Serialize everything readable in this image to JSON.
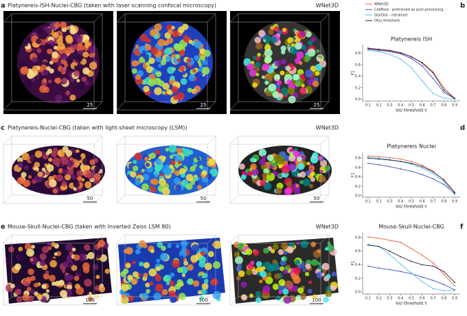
{
  "panels": [
    {
      "letter": "a",
      "title": "Platynereis-ISH-Nuclei-CBG (taken with laser scanning confocal microscopy)",
      "model": "WNet3D",
      "scales": [
        "25",
        "25",
        "25"
      ]
    },
    {
      "letter": "c",
      "title": "Platynereis-Nuclei-CBG (taken with light-sheet microscopy (LSM))",
      "model": "WNet3D",
      "scales": [
        "50",
        "50",
        "50"
      ]
    },
    {
      "letter": "e",
      "title": "Mouse-Skull-Nuclei-CBG (taken with Inverted Zeiss LSM 80)",
      "model": "WNet3D",
      "scales": [
        "100",
        "100",
        "100"
      ]
    }
  ],
  "chart_data": [
    {
      "type": "line",
      "label": "b",
      "title": "Platynereis ISH",
      "x_label": "IoU threshold τ",
      "y_label": "F1",
      "x": [
        0.1,
        0.2,
        0.3,
        0.4,
        0.5,
        0.6,
        0.7,
        0.8,
        0.9
      ],
      "xlim": [
        0.05,
        0.95
      ],
      "xticks": [
        0.1,
        0.2,
        0.3,
        0.4,
        0.5,
        0.6,
        0.7,
        0.8,
        0.9
      ],
      "ylim": [
        -0.03,
        0.95
      ],
      "yticks": [
        {
          "value": 0,
          "label": "0.0"
        },
        0.2,
        0.4,
        0.6,
        0.8
      ],
      "legend": "top",
      "series": [
        {
          "name": "WNet3D",
          "color": "#e8603c",
          "values": [
            0.88,
            0.86,
            0.84,
            0.8,
            0.74,
            0.64,
            0.48,
            0.2,
            0.02
          ]
        },
        {
          "name": "CellPose - pretrained w/ post-processing",
          "color": "#3b4fc4",
          "values": [
            0.87,
            0.85,
            0.83,
            0.79,
            0.71,
            0.58,
            0.36,
            0.12,
            0.01
          ]
        },
        {
          "name": "StarDist - retrained",
          "color": "#5bc0eb",
          "values": [
            0.85,
            0.83,
            0.78,
            0.7,
            0.55,
            0.32,
            0.1,
            0.02,
            0.0
          ]
        },
        {
          "name": "Otsu threshold",
          "color": "#2a1f3d",
          "values": [
            0.89,
            0.87,
            0.85,
            0.81,
            0.74,
            0.63,
            0.46,
            0.16,
            0.01
          ]
        }
      ]
    },
    {
      "type": "line",
      "label": "d",
      "title": "Platynereis Nuclei",
      "x_label": "IoU threshold τ",
      "y_label": "F1",
      "x": [
        0.1,
        0.2,
        0.3,
        0.4,
        0.5,
        0.6,
        0.7,
        0.8,
        0.9
      ],
      "xlim": [
        0.05,
        0.95
      ],
      "xticks": [
        0.1,
        0.2,
        0.3,
        0.4,
        0.5,
        0.6,
        0.7,
        0.8,
        0.9
      ],
      "ylim": [
        -0.03,
        0.92
      ],
      "yticks": [
        {
          "value": 0,
          "label": "0.0"
        },
        0.2,
        0.4,
        0.6,
        0.8
      ],
      "series": [
        {
          "name": "WNet3D",
          "color": "#e8603c",
          "values": [
            0.85,
            0.83,
            0.81,
            0.78,
            0.73,
            0.65,
            0.52,
            0.33,
            0.06
          ]
        },
        {
          "name": "CellPose - pretrained w/ post-processing",
          "color": "#3b4fc4",
          "values": [
            0.69,
            0.66,
            0.62,
            0.57,
            0.52,
            0.45,
            0.36,
            0.24,
            0.05
          ]
        },
        {
          "name": "StarDist - retrained",
          "color": "#5bc0eb",
          "values": [
            0.82,
            0.8,
            0.77,
            0.73,
            0.67,
            0.59,
            0.47,
            0.3,
            0.02
          ]
        },
        {
          "name": "Otsu threshold",
          "color": "#2a1f3d",
          "values": [
            0.8,
            0.78,
            0.76,
            0.73,
            0.69,
            0.62,
            0.51,
            0.34,
            0.07
          ]
        }
      ]
    },
    {
      "type": "line",
      "label": "f",
      "title": "Mouse-Skull-Nuclei-CBG",
      "x_label": "IoU threshold τ",
      "y_label": "F1",
      "x": [
        0.1,
        0.2,
        0.3,
        0.4,
        0.5,
        0.6,
        0.7,
        0.8,
        0.9
      ],
      "xlim": [
        0.05,
        0.95
      ],
      "xticks": [
        0.1,
        0.2,
        0.3,
        0.4,
        0.5,
        0.6,
        0.7,
        0.8,
        0.9
      ],
      "ylim": [
        -0.03,
        0.88
      ],
      "yticks": [
        {
          "value": 0,
          "label": "0.0"
        },
        0.2,
        0.4,
        0.6,
        0.8
      ],
      "series": [
        {
          "name": "WNet3D",
          "color": "#e8603c",
          "values": [
            0.81,
            0.79,
            0.76,
            0.73,
            0.64,
            0.54,
            0.43,
            0.26,
            0.09
          ]
        },
        {
          "name": "CellPose - pretrained w/ post-processing",
          "color": "#3b4fc4",
          "values": [
            0.38,
            0.35,
            0.33,
            0.3,
            0.27,
            0.22,
            0.17,
            0.11,
            0.03
          ]
        },
        {
          "name": "StarDist - retrained",
          "color": "#5bc0eb",
          "values": [
            0.7,
            0.67,
            0.55,
            0.41,
            0.28,
            0.15,
            0.05,
            0.02,
            0.02
          ]
        },
        {
          "name": "Otsu threshold",
          "color": "#2a1f3d",
          "values": [
            0.69,
            0.67,
            0.6,
            0.52,
            0.45,
            0.4,
            0.38,
            0.3,
            0.14
          ]
        }
      ]
    }
  ]
}
